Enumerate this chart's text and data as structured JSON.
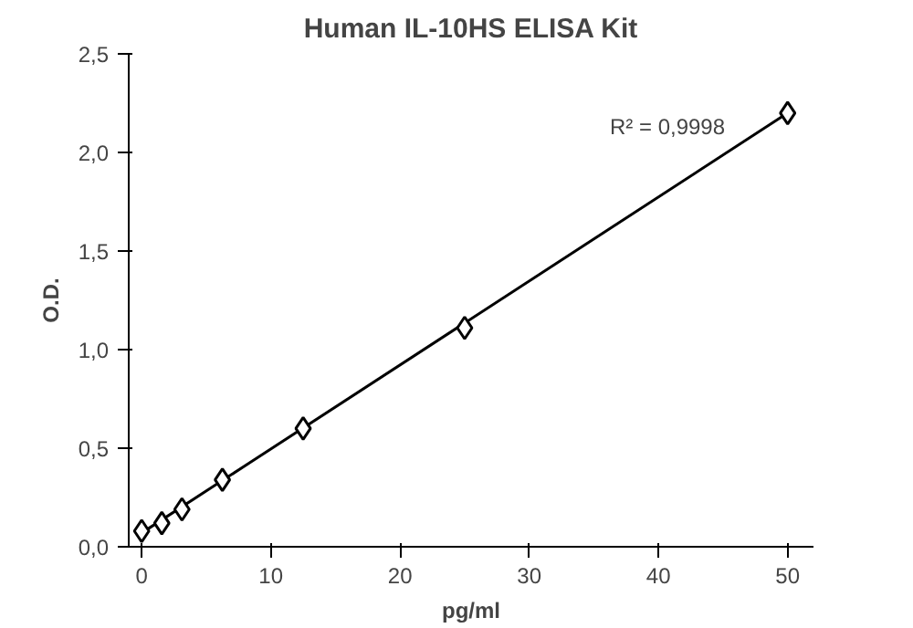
{
  "chart_data": {
    "type": "scatter",
    "title": "Human IL-10HS ELISA Kit",
    "xlabel": "pg/ml",
    "ylabel": "O.D.",
    "series": [
      {
        "color": "#000000",
        "marker": "diamond",
        "x": [
          0,
          1.56,
          3.12,
          6.25,
          12.5,
          25,
          50
        ],
        "values": [
          0.08,
          0.12,
          0.19,
          0.34,
          0.6,
          1.11,
          2.2
        ]
      },
      {
        "type": "line",
        "color": "#000000",
        "marker": "none",
        "line_style": "solid",
        "x": [
          0,
          50
        ],
        "values": [
          0.07,
          2.2
        ]
      }
    ],
    "annotations": [
      "R² = 0,9998"
    ],
    "xlim": [
      -1,
      52
    ],
    "xticks": [
      0,
      10,
      20,
      30,
      40,
      50
    ],
    "ylim": [
      0,
      2.5
    ],
    "yticks": [
      {
        "value": 0,
        "label": "0,0"
      },
      {
        "value": 0.5,
        "label": "0,5"
      },
      {
        "value": 1,
        "label": "1,0"
      },
      {
        "value": 1.5,
        "label": "1,5"
      },
      {
        "value": 2,
        "label": "2,0"
      },
      {
        "value": 2.5,
        "label": "2,5"
      }
    ],
    "grid": false
  }
}
